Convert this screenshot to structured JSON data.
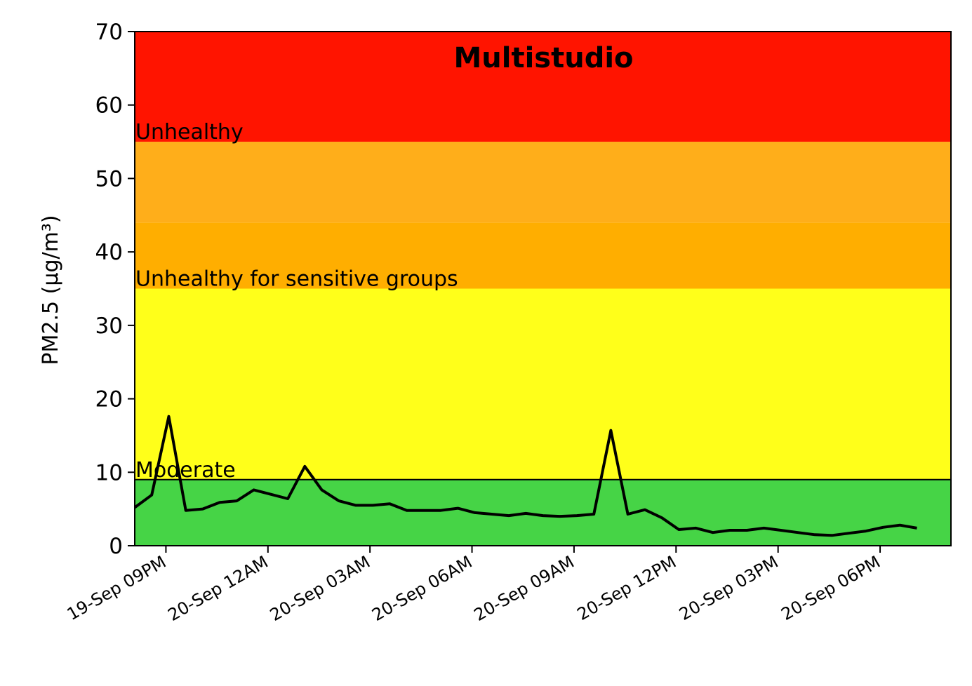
{
  "chart_data": {
    "type": "line",
    "title": "Multistudio",
    "xlabel": "",
    "ylabel": "PM2.5 (µg/m³)",
    "ylim": [
      0,
      70
    ],
    "yticks": [
      0,
      10,
      20,
      30,
      40,
      50,
      60,
      70
    ],
    "xlim": [
      "2024-09-19T20:05",
      "2024-09-20T20:05"
    ],
    "xtick_labels": [
      "19-Sep 09PM",
      "20-Sep 12AM",
      "20-Sep 03AM",
      "20-Sep 06AM",
      "20-Sep 09AM",
      "20-Sep 12PM",
      "20-Sep 03PM",
      "20-Sep 06PM"
    ],
    "xtick_times": [
      "2024-09-19T21:00",
      "2024-09-20T00:00",
      "2024-09-20T03:00",
      "2024-09-20T06:00",
      "2024-09-20T09:00",
      "2024-09-20T12:00",
      "2024-09-20T15:00",
      "2024-09-20T18:00"
    ],
    "bands": [
      {
        "from": 0,
        "to": 9,
        "color": "#46d446"
      },
      {
        "from": 9,
        "to": 35,
        "color": "#ffff1a"
      },
      {
        "from": 35,
        "to": 44,
        "color": "#ffae00"
      },
      {
        "from": 44,
        "to": 55,
        "color": "#ffae1a"
      },
      {
        "from": 55,
        "to": 70,
        "color": "#ff1400"
      }
    ],
    "band_labels": [
      {
        "text": "Moderate",
        "y": 9
      },
      {
        "text": "Unhealthy for sensitive groups",
        "y": 35
      },
      {
        "text": "Unhealthy",
        "y": 55
      }
    ],
    "threshold_line": 9,
    "series": [
      {
        "color": "#000000",
        "x": [
          "2024-09-19T20:05",
          "2024-09-19T20:35",
          "2024-09-19T21:05",
          "2024-09-19T21:35",
          "2024-09-19T22:05",
          "2024-09-19T22:35",
          "2024-09-19T23:05",
          "2024-09-19T23:35",
          "2024-09-20T00:05",
          "2024-09-20T00:35",
          "2024-09-20T01:05",
          "2024-09-20T01:35",
          "2024-09-20T02:05",
          "2024-09-20T02:35",
          "2024-09-20T03:05",
          "2024-09-20T03:35",
          "2024-09-20T04:05",
          "2024-09-20T04:35",
          "2024-09-20T05:05",
          "2024-09-20T05:35",
          "2024-09-20T06:05",
          "2024-09-20T06:35",
          "2024-09-20T07:05",
          "2024-09-20T07:35",
          "2024-09-20T08:05",
          "2024-09-20T08:35",
          "2024-09-20T09:05",
          "2024-09-20T09:35",
          "2024-09-20T10:05",
          "2024-09-20T10:35",
          "2024-09-20T11:05",
          "2024-09-20T11:35",
          "2024-09-20T12:05",
          "2024-09-20T12:35",
          "2024-09-20T13:05",
          "2024-09-20T13:35",
          "2024-09-20T14:05",
          "2024-09-20T14:35",
          "2024-09-20T15:05",
          "2024-09-20T15:35",
          "2024-09-20T16:05",
          "2024-09-20T16:35",
          "2024-09-20T17:05",
          "2024-09-20T17:35",
          "2024-09-20T18:05",
          "2024-09-20T18:35",
          "2024-09-20T19:05"
        ],
        "y": [
          5.2,
          6.9,
          17.6,
          4.8,
          5.0,
          5.9,
          6.1,
          7.6,
          7.0,
          6.4,
          10.8,
          7.6,
          6.1,
          5.5,
          5.5,
          5.7,
          4.8,
          4.8,
          4.8,
          5.1,
          4.5,
          4.3,
          4.1,
          4.4,
          4.1,
          4.0,
          4.1,
          4.3,
          15.7,
          4.3,
          4.9,
          3.8,
          2.2,
          2.4,
          1.8,
          2.1,
          2.1,
          2.4,
          2.1,
          1.8,
          1.5,
          1.4,
          1.7,
          2.0,
          2.5,
          2.8,
          2.4
        ]
      }
    ]
  }
}
